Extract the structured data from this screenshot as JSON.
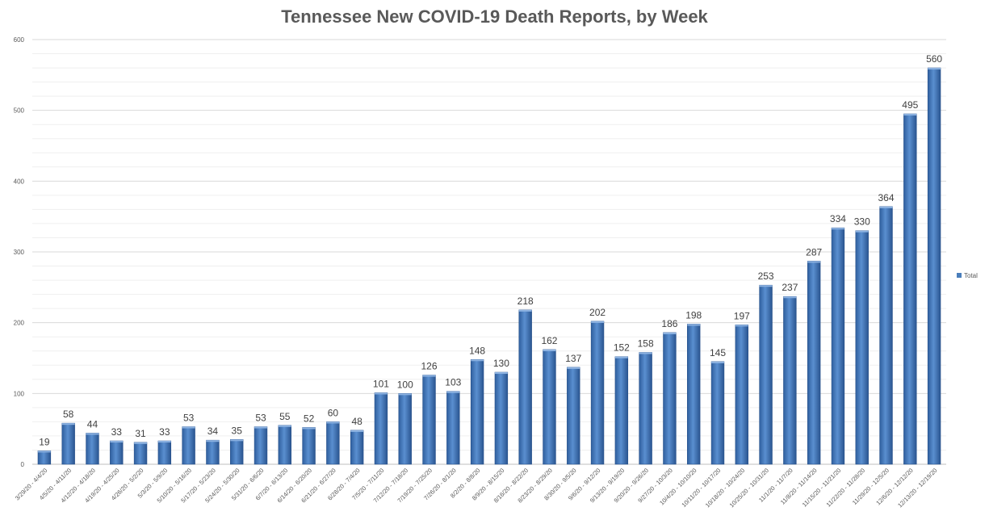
{
  "chart_data": {
    "type": "bar",
    "title": "Tennessee New COVID-19 Death Reports, by Week",
    "xlabel": "",
    "ylabel": "",
    "ylim": [
      0,
      600
    ],
    "yticks": [
      0,
      100,
      200,
      300,
      400,
      500,
      600
    ],
    "grid": true,
    "legend_position": "right",
    "categories": [
      "3/29/20 - 4/4/20",
      "4/5/20 - 4/11/20",
      "4/12/20 - 4/18/20",
      "4/19/20 - 4/25/20",
      "4/26/20 - 5/2/20",
      "5/3/20 - 5/9/20",
      "5/10/20 - 5/16/20",
      "5/17/20 - 5/23/20",
      "5/24/20 - 5/30/20",
      "5/31/20 - 6/6/20",
      "6/7/20 - 6/13/20",
      "6/14/20 - 6/20/20",
      "6/21/20 - 6/27/20",
      "6/28/20 - 7/4/20",
      "7/5/20 - 7/11/20",
      "7/12/20 - 7/18/20",
      "7/19/20 - 7/25/20",
      "7/26/20 - 8/1/20",
      "8/2/20 - 8/8/20",
      "8/9/20 - 8/15/20",
      "8/16/20 - 8/22/20",
      "8/23/20 - 8/29/20",
      "8/30/20 - 9/5/20",
      "9/6/20 - 9/12/20",
      "9/13/20 - 9/19/20",
      "9/20/20 - 9/26/20",
      "9/27/20 - 10/3/20",
      "10/4/20 - 10/10/20",
      "10/11/20 - 10/17/20",
      "10/18/20 - 10/24/20",
      "10/25/20 - 10/31/20",
      "11/1/20 - 11/7/20",
      "11/8/20 - 11/14/20",
      "11/15/20 - 11/21/20",
      "11/22/20 - 11/28/20",
      "11/29/20 - 12/5/20",
      "12/6/20 - 12/12/20",
      "12/13/20 - 12/19/20"
    ],
    "series": [
      {
        "name": "Total",
        "color": "#4a7ebb",
        "values": [
          19,
          58,
          44,
          33,
          31,
          33,
          53,
          34,
          35,
          53,
          55,
          52,
          60,
          48,
          101,
          100,
          126,
          103,
          148,
          130,
          218,
          162,
          137,
          202,
          152,
          158,
          186,
          198,
          145,
          197,
          253,
          237,
          287,
          334,
          330,
          364,
          495,
          560
        ]
      }
    ]
  }
}
